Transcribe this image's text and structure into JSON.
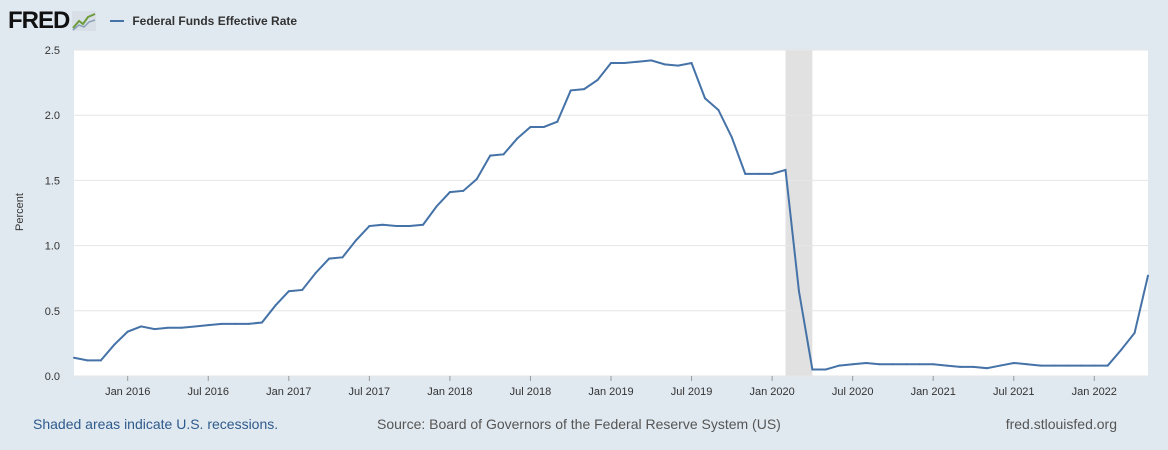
{
  "header": {
    "logo_text": "FRED",
    "legend_label": "Federal Funds Effective Rate"
  },
  "colors": {
    "series": "#4572a7",
    "recession": "#e1e1e1",
    "grid": "#e6e6e6",
    "background": "#e1e9f0",
    "plot": "#ffffff"
  },
  "footer": {
    "note": "Shaded areas indicate U.S. recessions.",
    "source": "Source: Board of Governors of the Federal Reserve System (US)",
    "link": "fred.stlouisfed.org"
  },
  "chart_data": {
    "type": "line",
    "title": "",
    "xlabel": "",
    "ylabel": "Percent",
    "ylim": [
      0,
      2.5
    ],
    "yticks": [
      "0.0",
      "0.5",
      "1.0",
      "1.5",
      "2.0",
      "2.5"
    ],
    "xlim": [
      "2015-09",
      "2022-05"
    ],
    "xticks": [
      {
        "date": "2016-01",
        "label": "Jan 2016"
      },
      {
        "date": "2016-07",
        "label": "Jul 2016"
      },
      {
        "date": "2017-01",
        "label": "Jan 2017"
      },
      {
        "date": "2017-07",
        "label": "Jul 2017"
      },
      {
        "date": "2018-01",
        "label": "Jan 2018"
      },
      {
        "date": "2018-07",
        "label": "Jul 2018"
      },
      {
        "date": "2019-01",
        "label": "Jan 2019"
      },
      {
        "date": "2019-07",
        "label": "Jul 2019"
      },
      {
        "date": "2020-01",
        "label": "Jan 2020"
      },
      {
        "date": "2020-07",
        "label": "Jul 2020"
      },
      {
        "date": "2021-01",
        "label": "Jan 2021"
      },
      {
        "date": "2021-07",
        "label": "Jul 2021"
      },
      {
        "date": "2022-01",
        "label": "Jan 2022"
      }
    ],
    "grid": true,
    "legend": "top-left",
    "recessions": [
      {
        "start": "2020-02",
        "end": "2020-04"
      }
    ],
    "series": [
      {
        "name": "Federal Funds Effective Rate",
        "x": [
          "2015-09",
          "2015-10",
          "2015-11",
          "2015-12",
          "2016-01",
          "2016-02",
          "2016-03",
          "2016-04",
          "2016-05",
          "2016-06",
          "2016-07",
          "2016-08",
          "2016-09",
          "2016-10",
          "2016-11",
          "2016-12",
          "2017-01",
          "2017-02",
          "2017-03",
          "2017-04",
          "2017-05",
          "2017-06",
          "2017-07",
          "2017-08",
          "2017-09",
          "2017-10",
          "2017-11",
          "2017-12",
          "2018-01",
          "2018-02",
          "2018-03",
          "2018-04",
          "2018-05",
          "2018-06",
          "2018-07",
          "2018-08",
          "2018-09",
          "2018-10",
          "2018-11",
          "2018-12",
          "2019-01",
          "2019-02",
          "2019-03",
          "2019-04",
          "2019-05",
          "2019-06",
          "2019-07",
          "2019-08",
          "2019-09",
          "2019-10",
          "2019-11",
          "2019-12",
          "2020-01",
          "2020-02",
          "2020-03",
          "2020-04",
          "2020-05",
          "2020-06",
          "2020-07",
          "2020-08",
          "2020-09",
          "2020-10",
          "2020-11",
          "2020-12",
          "2021-01",
          "2021-02",
          "2021-03",
          "2021-04",
          "2021-05",
          "2021-06",
          "2021-07",
          "2021-08",
          "2021-09",
          "2021-10",
          "2021-11",
          "2021-12",
          "2022-01",
          "2022-02",
          "2022-03",
          "2022-04",
          "2022-05"
        ],
        "values": [
          0.14,
          0.12,
          0.12,
          0.24,
          0.34,
          0.38,
          0.36,
          0.37,
          0.37,
          0.38,
          0.39,
          0.4,
          0.4,
          0.4,
          0.41,
          0.54,
          0.65,
          0.66,
          0.79,
          0.9,
          0.91,
          1.04,
          1.15,
          1.16,
          1.15,
          1.15,
          1.16,
          1.3,
          1.41,
          1.42,
          1.51,
          1.69,
          1.7,
          1.82,
          1.91,
          1.91,
          1.95,
          2.19,
          2.2,
          2.27,
          2.4,
          2.4,
          2.41,
          2.42,
          2.39,
          2.38,
          2.4,
          2.13,
          2.04,
          1.83,
          1.55,
          1.55,
          1.55,
          1.58,
          0.65,
          0.05,
          0.05,
          0.08,
          0.09,
          0.1,
          0.09,
          0.09,
          0.09,
          0.09,
          0.09,
          0.08,
          0.07,
          0.07,
          0.06,
          0.08,
          0.1,
          0.09,
          0.08,
          0.08,
          0.08,
          0.08,
          0.08,
          0.08,
          0.2,
          0.33,
          0.77
        ]
      }
    ]
  }
}
